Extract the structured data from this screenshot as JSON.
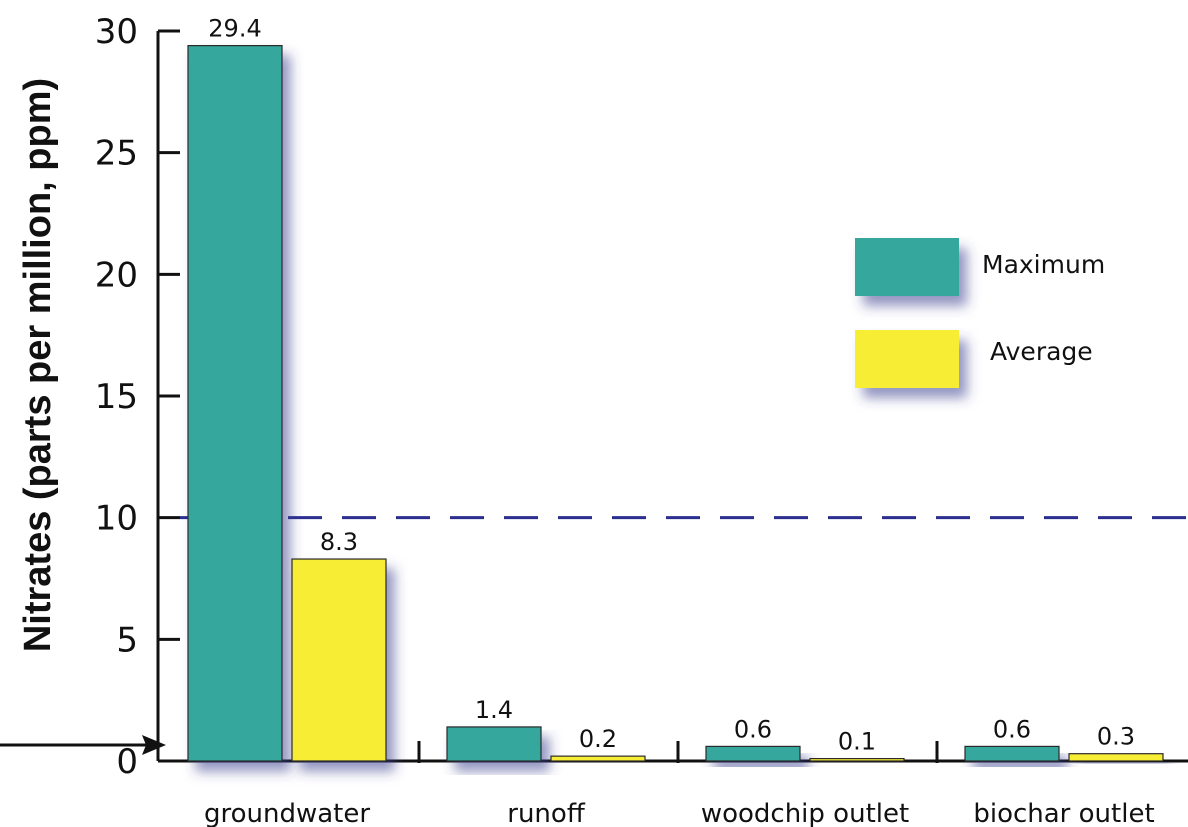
{
  "chart_data": {
    "type": "bar",
    "categories": [
      "groundwater",
      "runoff",
      "woodchip outlet",
      "biochar outlet"
    ],
    "series": [
      {
        "name": "Maximum",
        "values": [
          29.4,
          1.4,
          0.6,
          0.6
        ],
        "color": "#34a79c"
      },
      {
        "name": "Average",
        "values": [
          8.3,
          0.2,
          0.1,
          0.3
        ],
        "color": "#f7ed36"
      }
    ],
    "value_labels": {
      "Maximum": [
        "29.4",
        "1.4",
        "0.6",
        "0.6"
      ],
      "Average": [
        "8.3",
        "0.2",
        "0.1",
        "0.3"
      ]
    },
    "ylabel": "Nitrates (parts per million, ppm)",
    "xlabel": "",
    "ylim": [
      0,
      30
    ],
    "yticks": [
      0,
      5,
      10,
      15,
      20,
      25,
      30
    ],
    "reference_line": {
      "value": 10,
      "style": "dashed",
      "color": "#2b2f8f"
    },
    "zero_arrow": true,
    "legend_position": "right",
    "grid": false
  }
}
